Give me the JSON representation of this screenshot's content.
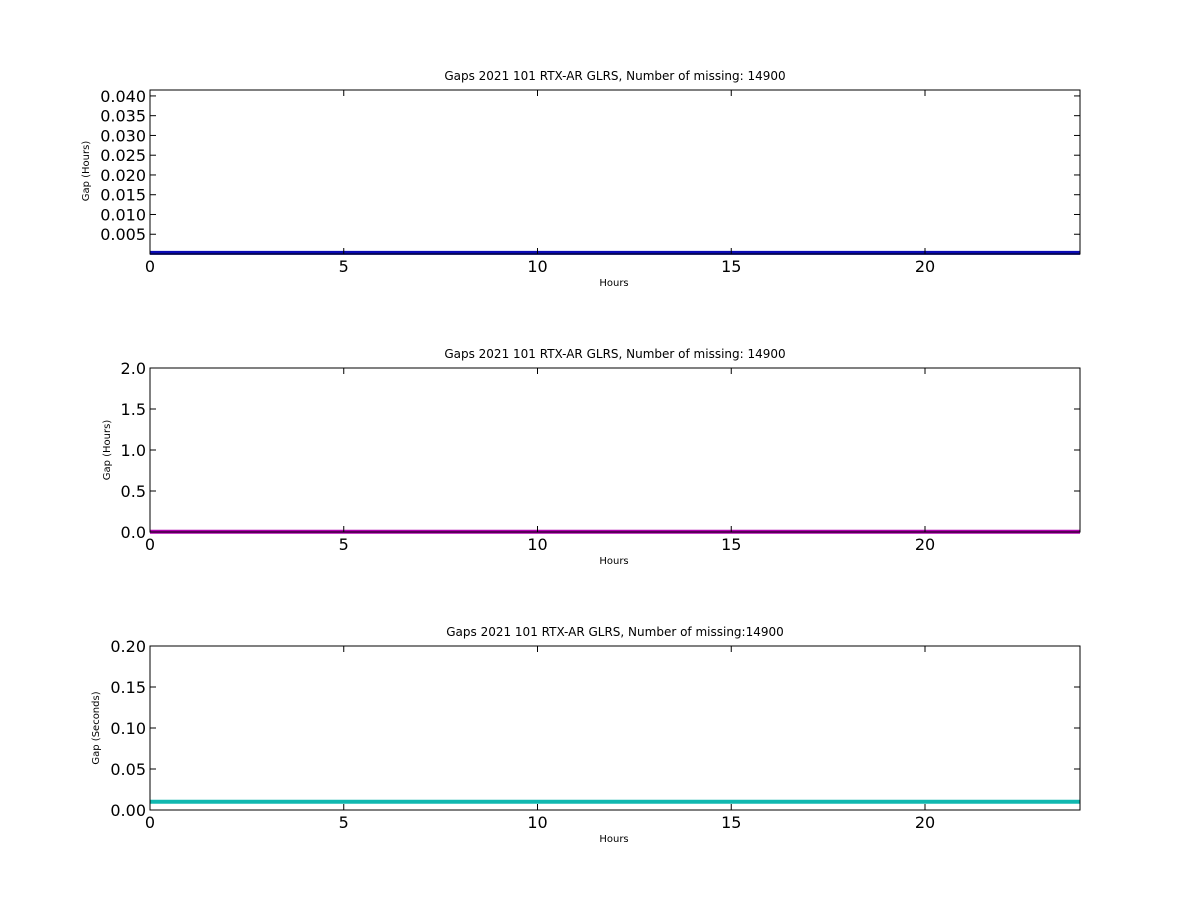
{
  "chart_data": [
    {
      "type": "line",
      "title": "Gaps 2021 101 RTX-AR  GLRS, Number of missing: 14900",
      "xlabel": "Hours",
      "ylabel": "Gap (Hours)",
      "xlim": [
        0,
        24
      ],
      "ylim": [
        0,
        0.0415
      ],
      "xticks": [
        0,
        5,
        10,
        15,
        20
      ],
      "yticks": [
        0.005,
        0.01,
        0.015,
        0.02,
        0.025,
        0.03,
        0.035,
        0.04
      ],
      "ytick_labels": [
        "0.005",
        "0.010",
        "0.015",
        "0.020",
        "0.025",
        "0.030",
        "0.035",
        "0.040"
      ],
      "grid": false,
      "series": [
        {
          "color": "#0a0ab4",
          "x": [
            0,
            24
          ],
          "y": [
            0.00028,
            0.00028
          ]
        }
      ]
    },
    {
      "type": "line",
      "title": "Gaps 2021 101 RTX-AR  GLRS, Number of missing: 14900",
      "xlabel": "Hours",
      "ylabel": "Gap (Hours)",
      "xlim": [
        0,
        24
      ],
      "ylim": [
        0,
        2.0
      ],
      "xticks": [
        0,
        5,
        10,
        15,
        20
      ],
      "yticks": [
        0.0,
        0.5,
        1.0,
        1.5,
        2.0
      ],
      "ytick_labels": [
        "0.0",
        "0.5",
        "1.0",
        "1.5",
        "2.0"
      ],
      "grid": false,
      "series": [
        {
          "color": "#b000b0",
          "x": [
            0,
            24
          ],
          "y": [
            0.003,
            0.003
          ]
        }
      ]
    },
    {
      "type": "line",
      "title": "Gaps 2021 101 RTX-AR  GLRS, Number of missing:14900",
      "xlabel": "Hours",
      "ylabel": "Gap (Seconds)",
      "xlim": [
        0,
        24
      ],
      "ylim": [
        0,
        0.2
      ],
      "xticks": [
        0,
        5,
        10,
        15,
        20
      ],
      "yticks": [
        0.0,
        0.05,
        0.1,
        0.15,
        0.2
      ],
      "ytick_labels": [
        "0.00",
        "0.05",
        "0.10",
        "0.15",
        "0.20"
      ],
      "grid": false,
      "series": [
        {
          "color": "#10b8b0",
          "x": [
            0,
            24
          ],
          "y": [
            0.01,
            0.01
          ]
        }
      ]
    }
  ]
}
